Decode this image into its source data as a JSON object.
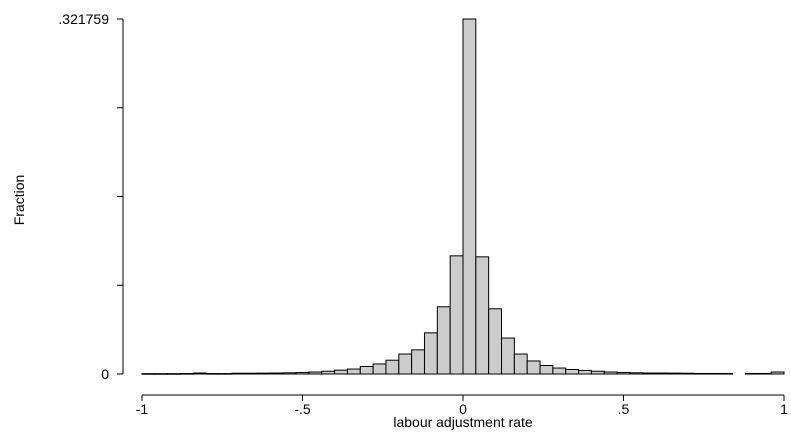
{
  "chart_data": {
    "type": "bar",
    "title": "",
    "xlabel": "labour adjustment rate",
    "ylabel": "Fraction",
    "xlim": [
      -1,
      1
    ],
    "ylim": [
      0,
      0.321759
    ],
    "x_ticks": [
      {
        "value": -1,
        "label": "-1"
      },
      {
        "value": -0.5,
        "label": "-.5"
      },
      {
        "value": 0,
        "label": "0"
      },
      {
        "value": 0.5,
        "label": ".5"
      },
      {
        "value": 1,
        "label": "1"
      }
    ],
    "y_ticks": [
      {
        "value": 0,
        "label": "0"
      },
      {
        "value": 0.08044,
        "label": ""
      },
      {
        "value": 0.16088,
        "label": ""
      },
      {
        "value": 0.24132,
        "label": ""
      },
      {
        "value": 0.321759,
        "label": ".321759"
      }
    ],
    "bin_width": 0.04,
    "bins": [
      {
        "x": -0.98,
        "y": 0.0003
      },
      {
        "x": -0.94,
        "y": 0.0003
      },
      {
        "x": -0.9,
        "y": 0.0003
      },
      {
        "x": -0.86,
        "y": 0.0004
      },
      {
        "x": -0.82,
        "y": 0.0009
      },
      {
        "x": -0.78,
        "y": 0.0004
      },
      {
        "x": -0.74,
        "y": 0.0004
      },
      {
        "x": -0.7,
        "y": 0.0007
      },
      {
        "x": -0.66,
        "y": 0.0007
      },
      {
        "x": -0.62,
        "y": 0.0008
      },
      {
        "x": -0.58,
        "y": 0.0009
      },
      {
        "x": -0.54,
        "y": 0.0011
      },
      {
        "x": -0.5,
        "y": 0.0014
      },
      {
        "x": -0.46,
        "y": 0.0018
      },
      {
        "x": -0.42,
        "y": 0.0025
      },
      {
        "x": -0.38,
        "y": 0.0035
      },
      {
        "x": -0.34,
        "y": 0.0045
      },
      {
        "x": -0.3,
        "y": 0.0068
      },
      {
        "x": -0.26,
        "y": 0.0091
      },
      {
        "x": -0.22,
        "y": 0.0125
      },
      {
        "x": -0.18,
        "y": 0.0181
      },
      {
        "x": -0.14,
        "y": 0.0219
      },
      {
        "x": -0.1,
        "y": 0.0373
      },
      {
        "x": -0.06,
        "y": 0.0609
      },
      {
        "x": -0.02,
        "y": 0.1071
      },
      {
        "x": 0.02,
        "y": 0.321759
      },
      {
        "x": 0.06,
        "y": 0.1062
      },
      {
        "x": 0.1,
        "y": 0.0591
      },
      {
        "x": 0.14,
        "y": 0.0326
      },
      {
        "x": 0.18,
        "y": 0.0181
      },
      {
        "x": 0.22,
        "y": 0.0118
      },
      {
        "x": 0.26,
        "y": 0.0077
      },
      {
        "x": 0.3,
        "y": 0.0054
      },
      {
        "x": 0.34,
        "y": 0.0041
      },
      {
        "x": 0.38,
        "y": 0.0032
      },
      {
        "x": 0.42,
        "y": 0.0025
      },
      {
        "x": 0.46,
        "y": 0.0018
      },
      {
        "x": 0.5,
        "y": 0.0014
      },
      {
        "x": 0.54,
        "y": 0.0011
      },
      {
        "x": 0.58,
        "y": 0.0009
      },
      {
        "x": 0.62,
        "y": 0.0009
      },
      {
        "x": 0.66,
        "y": 0.0008
      },
      {
        "x": 0.7,
        "y": 0.0007
      },
      {
        "x": 0.74,
        "y": 0.0005
      },
      {
        "x": 0.78,
        "y": 0.0005
      },
      {
        "x": 0.82,
        "y": 0.0005
      },
      {
        "x": 0.9,
        "y": 0.0005
      },
      {
        "x": 0.94,
        "y": 0.0005
      },
      {
        "x": 0.98,
        "y": 0.0018
      }
    ],
    "colors": {
      "bar_fill": "#cccccc",
      "bar_stroke": "#000000",
      "axis": "#000000"
    },
    "grid": false,
    "legend": "none"
  }
}
